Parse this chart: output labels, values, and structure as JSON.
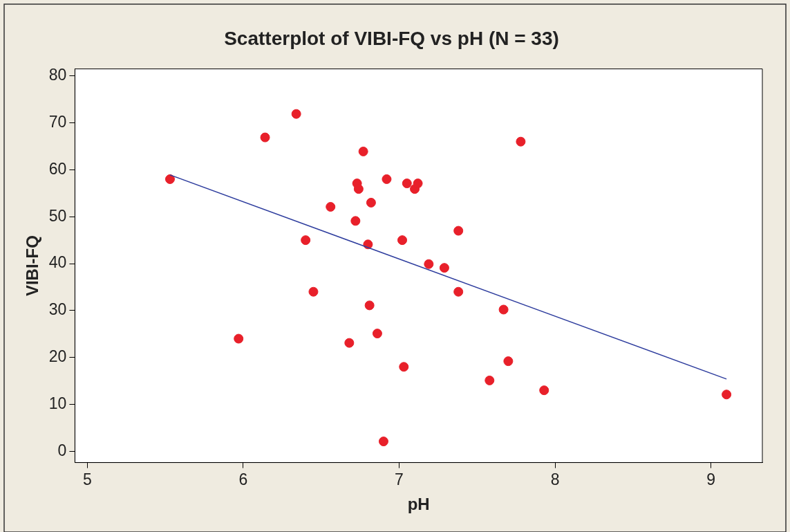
{
  "chart_data": {
    "type": "scatter",
    "title": "Scatterplot of VIBI-FQ vs pH (N = 33)",
    "xlabel": "pH",
    "ylabel": "VIBI-FQ",
    "xlim": [
      4.92,
      9.33
    ],
    "xticks": [
      5,
      6,
      7,
      8,
      9
    ],
    "ylim": [
      -2.4,
      81.5
    ],
    "yticks": [
      0,
      10,
      20,
      30,
      40,
      50,
      60,
      70,
      80
    ],
    "grid": false,
    "legend": false,
    "series": [
      {
        "color": "#e8202a",
        "marker": "circle",
        "x": [
          5.53,
          5.97,
          6.14,
          6.34,
          6.4,
          6.45,
          6.56,
          6.68,
          6.72,
          6.73,
          6.74,
          6.77,
          6.8,
          6.81,
          6.82,
          6.86,
          6.9,
          6.92,
          7.02,
          7.03,
          7.05,
          7.1,
          7.12,
          7.19,
          7.29,
          7.38,
          7.38,
          7.58,
          7.67,
          7.7,
          7.78,
          7.93,
          9.1
        ],
        "values": [
          58,
          24,
          66.9,
          71.9,
          45,
          34,
          52.1,
          23.1,
          49.1,
          57.1,
          55.9,
          63.9,
          44.1,
          31.1,
          53,
          25.1,
          2.1,
          58,
          45,
          18,
          57.1,
          55.9,
          57.1,
          39.9,
          39.1,
          47,
          34,
          15.1,
          30.2,
          19.2,
          66,
          13,
          12.1
        ]
      },
      {
        "type": "line",
        "color": "#2e3d9e",
        "marker": "none",
        "x": [
          5.53,
          9.1
        ],
        "values": [
          58.9,
          15.4
        ]
      }
    ]
  }
}
